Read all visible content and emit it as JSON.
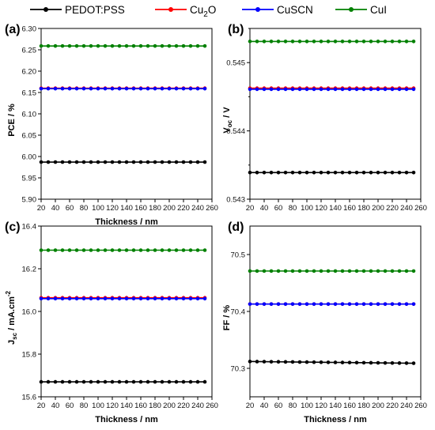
{
  "legend": [
    {
      "label": "PEDOT:PSS",
      "color": "#000000"
    },
    {
      "label": "Cu₂O",
      "color": "#ff0000"
    },
    {
      "label": "CuSCN",
      "color": "#0000ff"
    },
    {
      "label": "CuI",
      "color": "#008000"
    }
  ],
  "chart_data": [
    {
      "panel": "(a)",
      "type": "line",
      "xlabel": "Thickness / nm",
      "ylabel": "PCE / %",
      "xlim": [
        20,
        260
      ],
      "ylim": [
        5.9,
        6.3
      ],
      "xticks": [
        "20",
        "40",
        "60",
        "80",
        "100",
        "120",
        "140",
        "160",
        "180",
        "200",
        "220",
        "240",
        "260"
      ],
      "yticks": [
        "5.90",
        "5.95",
        "6.00",
        "6.05",
        "6.10",
        "6.15",
        "6.20",
        "6.25",
        "6.30"
      ],
      "x": [
        20,
        30,
        40,
        50,
        60,
        70,
        80,
        90,
        100,
        110,
        120,
        130,
        140,
        150,
        160,
        170,
        180,
        190,
        200,
        210,
        220,
        230,
        240,
        250
      ],
      "series": [
        {
          "name": "PEDOT:PSS",
          "color": "#000000",
          "const": 5.987
        },
        {
          "name": "Cu₂O",
          "color": "#ff0000",
          "const": 6.16
        },
        {
          "name": "CuSCN",
          "color": "#0000ff",
          "const": 6.159
        },
        {
          "name": "CuI",
          "color": "#008000",
          "const": 6.259
        }
      ]
    },
    {
      "panel": "(b)",
      "type": "line",
      "xlabel": "",
      "ylabel": "V_oc / V",
      "xlim": [
        20,
        260
      ],
      "ylim": [
        0.543,
        0.5455
      ],
      "xticks": [
        "20",
        "40",
        "60",
        "80",
        "100",
        "120",
        "140",
        "160",
        "180",
        "200",
        "220",
        "240",
        "260"
      ],
      "yticks": [
        "0.543",
        "0.544",
        "0.545"
      ],
      "x": [
        20,
        30,
        40,
        50,
        60,
        70,
        80,
        90,
        100,
        110,
        120,
        130,
        140,
        150,
        160,
        170,
        180,
        190,
        200,
        210,
        220,
        230,
        240,
        250
      ],
      "series": [
        {
          "name": "PEDOT:PSS",
          "color": "#000000",
          "const": 0.54339
        },
        {
          "name": "Cu₂O",
          "color": "#ff0000",
          "const": 0.544625
        },
        {
          "name": "CuSCN",
          "color": "#0000ff",
          "const": 0.54461
        },
        {
          "name": "CuI",
          "color": "#008000",
          "const": 0.54531
        }
      ]
    },
    {
      "panel": "(c)",
      "type": "line",
      "xlabel": "Thickness / nm",
      "ylabel": "J_sc / mA.cm^-2",
      "xlim": [
        20,
        260
      ],
      "ylim": [
        15.6,
        16.4
      ],
      "xticks": [
        "20",
        "40",
        "60",
        "80",
        "100",
        "120",
        "140",
        "160",
        "180",
        "200",
        "220",
        "240",
        "260"
      ],
      "yticks": [
        "15.6",
        "15.8",
        "16.0",
        "16.2",
        "16.4"
      ],
      "x": [
        20,
        30,
        40,
        50,
        60,
        70,
        80,
        90,
        100,
        110,
        120,
        130,
        140,
        150,
        160,
        170,
        180,
        190,
        200,
        210,
        220,
        230,
        240,
        250
      ],
      "series": [
        {
          "name": "PEDOT:PSS",
          "color": "#000000",
          "const": 15.67
        },
        {
          "name": "Cu₂O",
          "color": "#ff0000",
          "const": 16.064
        },
        {
          "name": "CuSCN",
          "color": "#0000ff",
          "const": 16.06
        },
        {
          "name": "CuI",
          "color": "#008000",
          "const": 16.287
        }
      ]
    },
    {
      "panel": "(d)",
      "type": "line",
      "xlabel": "Thickness / nm",
      "ylabel": "FF / %",
      "xlim": [
        20,
        260
      ],
      "ylim": [
        70.25,
        70.55
      ],
      "xticks": [
        "20",
        "40",
        "60",
        "80",
        "100",
        "120",
        "140",
        "160",
        "180",
        "200",
        "220",
        "240",
        "260"
      ],
      "yticks": [
        "70.3",
        "70.4",
        "70.5"
      ],
      "x": [
        20,
        30,
        40,
        50,
        60,
        70,
        80,
        90,
        100,
        110,
        120,
        130,
        140,
        150,
        160,
        170,
        180,
        190,
        200,
        210,
        220,
        230,
        240,
        250
      ],
      "series": [
        {
          "name": "PEDOT:PSS",
          "color": "#000000",
          "start": 70.312,
          "end": 70.309
        },
        {
          "name": "Cu₂O",
          "color": "#ff0000",
          "const": 70.413
        },
        {
          "name": "CuSCN",
          "color": "#0000ff",
          "const": 70.413
        },
        {
          "name": "CuI",
          "color": "#008000",
          "const": 70.471
        }
      ]
    }
  ]
}
